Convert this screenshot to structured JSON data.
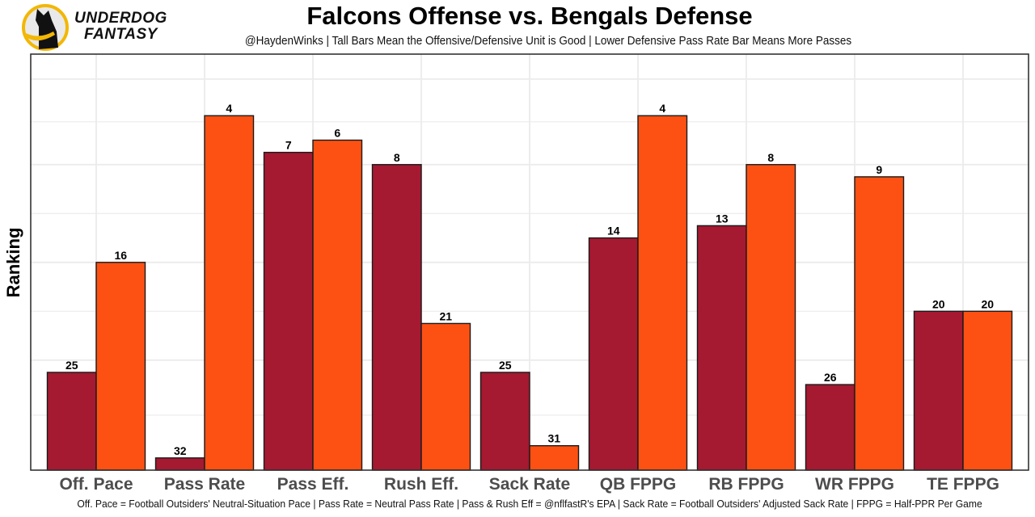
{
  "brand": {
    "name_line1": "UNDERDOG",
    "name_line2": "FANTASY",
    "icon": "underdog-dog-logo-icon"
  },
  "chart_data": {
    "type": "bar",
    "title": "Falcons Offense vs. Bengals Defense",
    "subtitle": "@HaydenWinks | Tall Bars Mean the Offensive/Defensive Unit is Good | Lower Defensive Pass Rate Bar Means More Passes",
    "xlabel": "",
    "ylabel": "Ranking",
    "y_axis_note": "Ranks out of 32; bar height = 33 - rank (rank 1 tallest)",
    "rank_range": [
      1,
      32
    ],
    "grid": true,
    "legend": "none",
    "categories": [
      "Off. Pace",
      "Pass Rate",
      "Pass Eff.",
      "Rush Eff.",
      "Sack Rate",
      "QB FPPG",
      "RB FPPG",
      "WR FPPG",
      "TE FPPG"
    ],
    "series": [
      {
        "name": "Falcons Offense",
        "color": "#A51931",
        "values": [
          25,
          32,
          7,
          8,
          25,
          14,
          13,
          26,
          20
        ]
      },
      {
        "name": "Bengals Defense",
        "color": "#FC5113",
        "values": [
          16,
          4,
          6,
          21,
          31,
          4,
          8,
          9,
          20
        ]
      }
    ],
    "caption": "Off. Pace = Football Outsiders' Neutral-Situation Pace | Pass Rate = Neutral Pass Rate | Pass & Rush Eff = @nflfastR's EPA | Sack Rate = Football Outsiders' Adjusted Sack Rate | FPPG = Half-PPR Per Game"
  }
}
